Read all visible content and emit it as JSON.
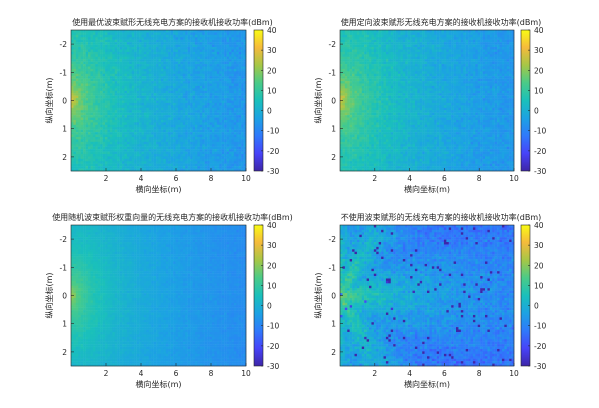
{
  "chart_data": [
    {
      "type": "heatmap",
      "pattern": "optimal",
      "title": "使用最优波束赋形无线充电方案的接收机接收功率(dBm)",
      "xlabel": "横向坐标(m)",
      "ylabel": "纵向坐标(m)",
      "xlim": [
        0,
        10
      ],
      "ylim": [
        -2.5,
        2.5
      ],
      "y_reversed": true,
      "xticks": [
        2,
        4,
        6,
        8,
        10
      ],
      "yticks": [
        -2,
        -1,
        0,
        1,
        2
      ],
      "clim": [
        -30,
        40
      ],
      "colorbar_ticks": [
        -30,
        -20,
        -10,
        0,
        10,
        20,
        30,
        40
      ],
      "colormap": "parula",
      "approx_values_dBm": {
        "near_origin": 28,
        "far_field": 7
      }
    },
    {
      "type": "heatmap",
      "pattern": "directional",
      "title": "使用定向波束赋形无线充电方案的接收机接收功率(dBm)",
      "xlabel": "横向坐标(m)",
      "ylabel": "纵向坐标(m)",
      "xlim": [
        0,
        10
      ],
      "ylim": [
        -2.5,
        2.5
      ],
      "y_reversed": true,
      "xticks": [
        2,
        4,
        6,
        8,
        10
      ],
      "yticks": [
        -2,
        -1,
        0,
        1,
        2
      ],
      "clim": [
        -30,
        40
      ],
      "colorbar_ticks": [
        -30,
        -20,
        -10,
        0,
        10,
        20,
        30,
        40
      ],
      "colormap": "parula",
      "approx_values_dBm": {
        "near_origin": 28,
        "far_field": 7
      }
    },
    {
      "type": "heatmap",
      "pattern": "random",
      "title": "使用随机波束赋形权重向量的无线充电方案的接收机接收功率(dBm)",
      "xlabel": "横向坐标(m)",
      "ylabel": "纵向坐标(m)",
      "xlim": [
        0,
        10
      ],
      "ylim": [
        -2.5,
        2.5
      ],
      "y_reversed": true,
      "xticks": [
        2,
        4,
        6,
        8,
        10
      ],
      "yticks": [
        -2,
        -1,
        0,
        1,
        2
      ],
      "clim": [
        -30,
        40
      ],
      "colorbar_ticks": [
        -30,
        -20,
        -10,
        0,
        10,
        20,
        30,
        40
      ],
      "colormap": "parula",
      "approx_values_dBm": {
        "near_origin": 22,
        "far_field": 4
      }
    },
    {
      "type": "heatmap",
      "pattern": "none",
      "title": "不使用波束赋形的无线充电方案的接收机接收功率(dBm)",
      "xlabel": "横向坐标(m)",
      "ylabel": "纵向坐标(m)",
      "xlim": [
        0,
        10
      ],
      "ylim": [
        -2.5,
        2.5
      ],
      "y_reversed": true,
      "xticks": [
        2,
        4,
        6,
        8,
        10
      ],
      "yticks": [
        -2,
        -1,
        0,
        1,
        2
      ],
      "clim": [
        -30,
        40
      ],
      "colorbar_ticks": [
        -30,
        -20,
        -10,
        0,
        10,
        20,
        30,
        40
      ],
      "colormap": "parula",
      "approx_values_dBm": {
        "beam_center": 22,
        "background": 2,
        "nulls": -25
      }
    }
  ]
}
